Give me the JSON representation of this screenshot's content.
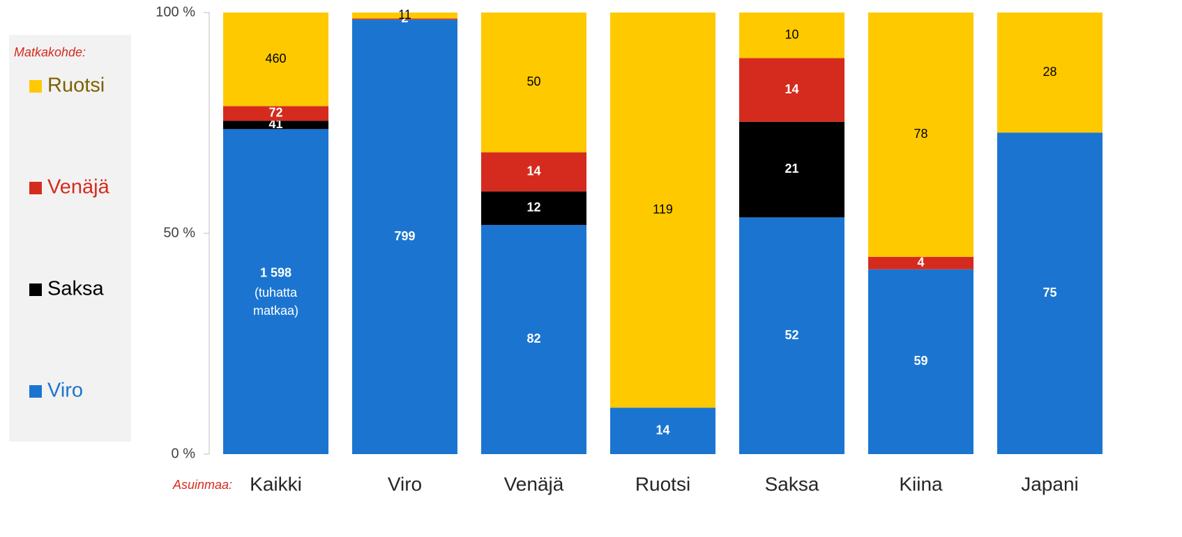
{
  "chart_data": {
    "type": "bar",
    "stacking": "percent",
    "legend_title": "Matkakohde:",
    "x_label": "Asuinmaa:",
    "annotation": "(tuhatta matkaa)",
    "categories": [
      "Kaikki",
      "Viro",
      "Venäjä",
      "Ruotsi",
      "Saksa",
      "Kiina",
      "Japani"
    ],
    "series": [
      {
        "name": "Viro",
        "color": "#1b75d0",
        "legend_text_color": "#1b75d0",
        "label_color": "#ffffff",
        "values": [
          1598,
          799,
          82,
          14,
          52,
          59,
          75
        ],
        "value_labels": [
          "1 598",
          "799",
          "82",
          "14",
          "52",
          "59",
          "75"
        ]
      },
      {
        "name": "Saksa",
        "color": "#000000",
        "legend_text_color": "#000000",
        "label_color": "#ffffff",
        "values": [
          41,
          null,
          12,
          null,
          21,
          null,
          null
        ]
      },
      {
        "name": "Venäjä",
        "color": "#d52b1e",
        "legend_text_color": "#d52b1e",
        "label_color": "#ffffff",
        "values": [
          72,
          2,
          14,
          null,
          14,
          4,
          null
        ]
      },
      {
        "name": "Ruotsi",
        "color": "#ffc900",
        "legend_text_color": "#7f6000",
        "label_color": "#000000",
        "values": [
          460,
          11,
          50,
          119,
          10,
          78,
          28
        ]
      }
    ],
    "ylim": [
      0,
      100
    ],
    "yticks": [
      {
        "value": 0,
        "label": "0 %"
      },
      {
        "value": 50,
        "label": "50 %"
      },
      {
        "value": 100,
        "label": "100 %"
      }
    ]
  }
}
